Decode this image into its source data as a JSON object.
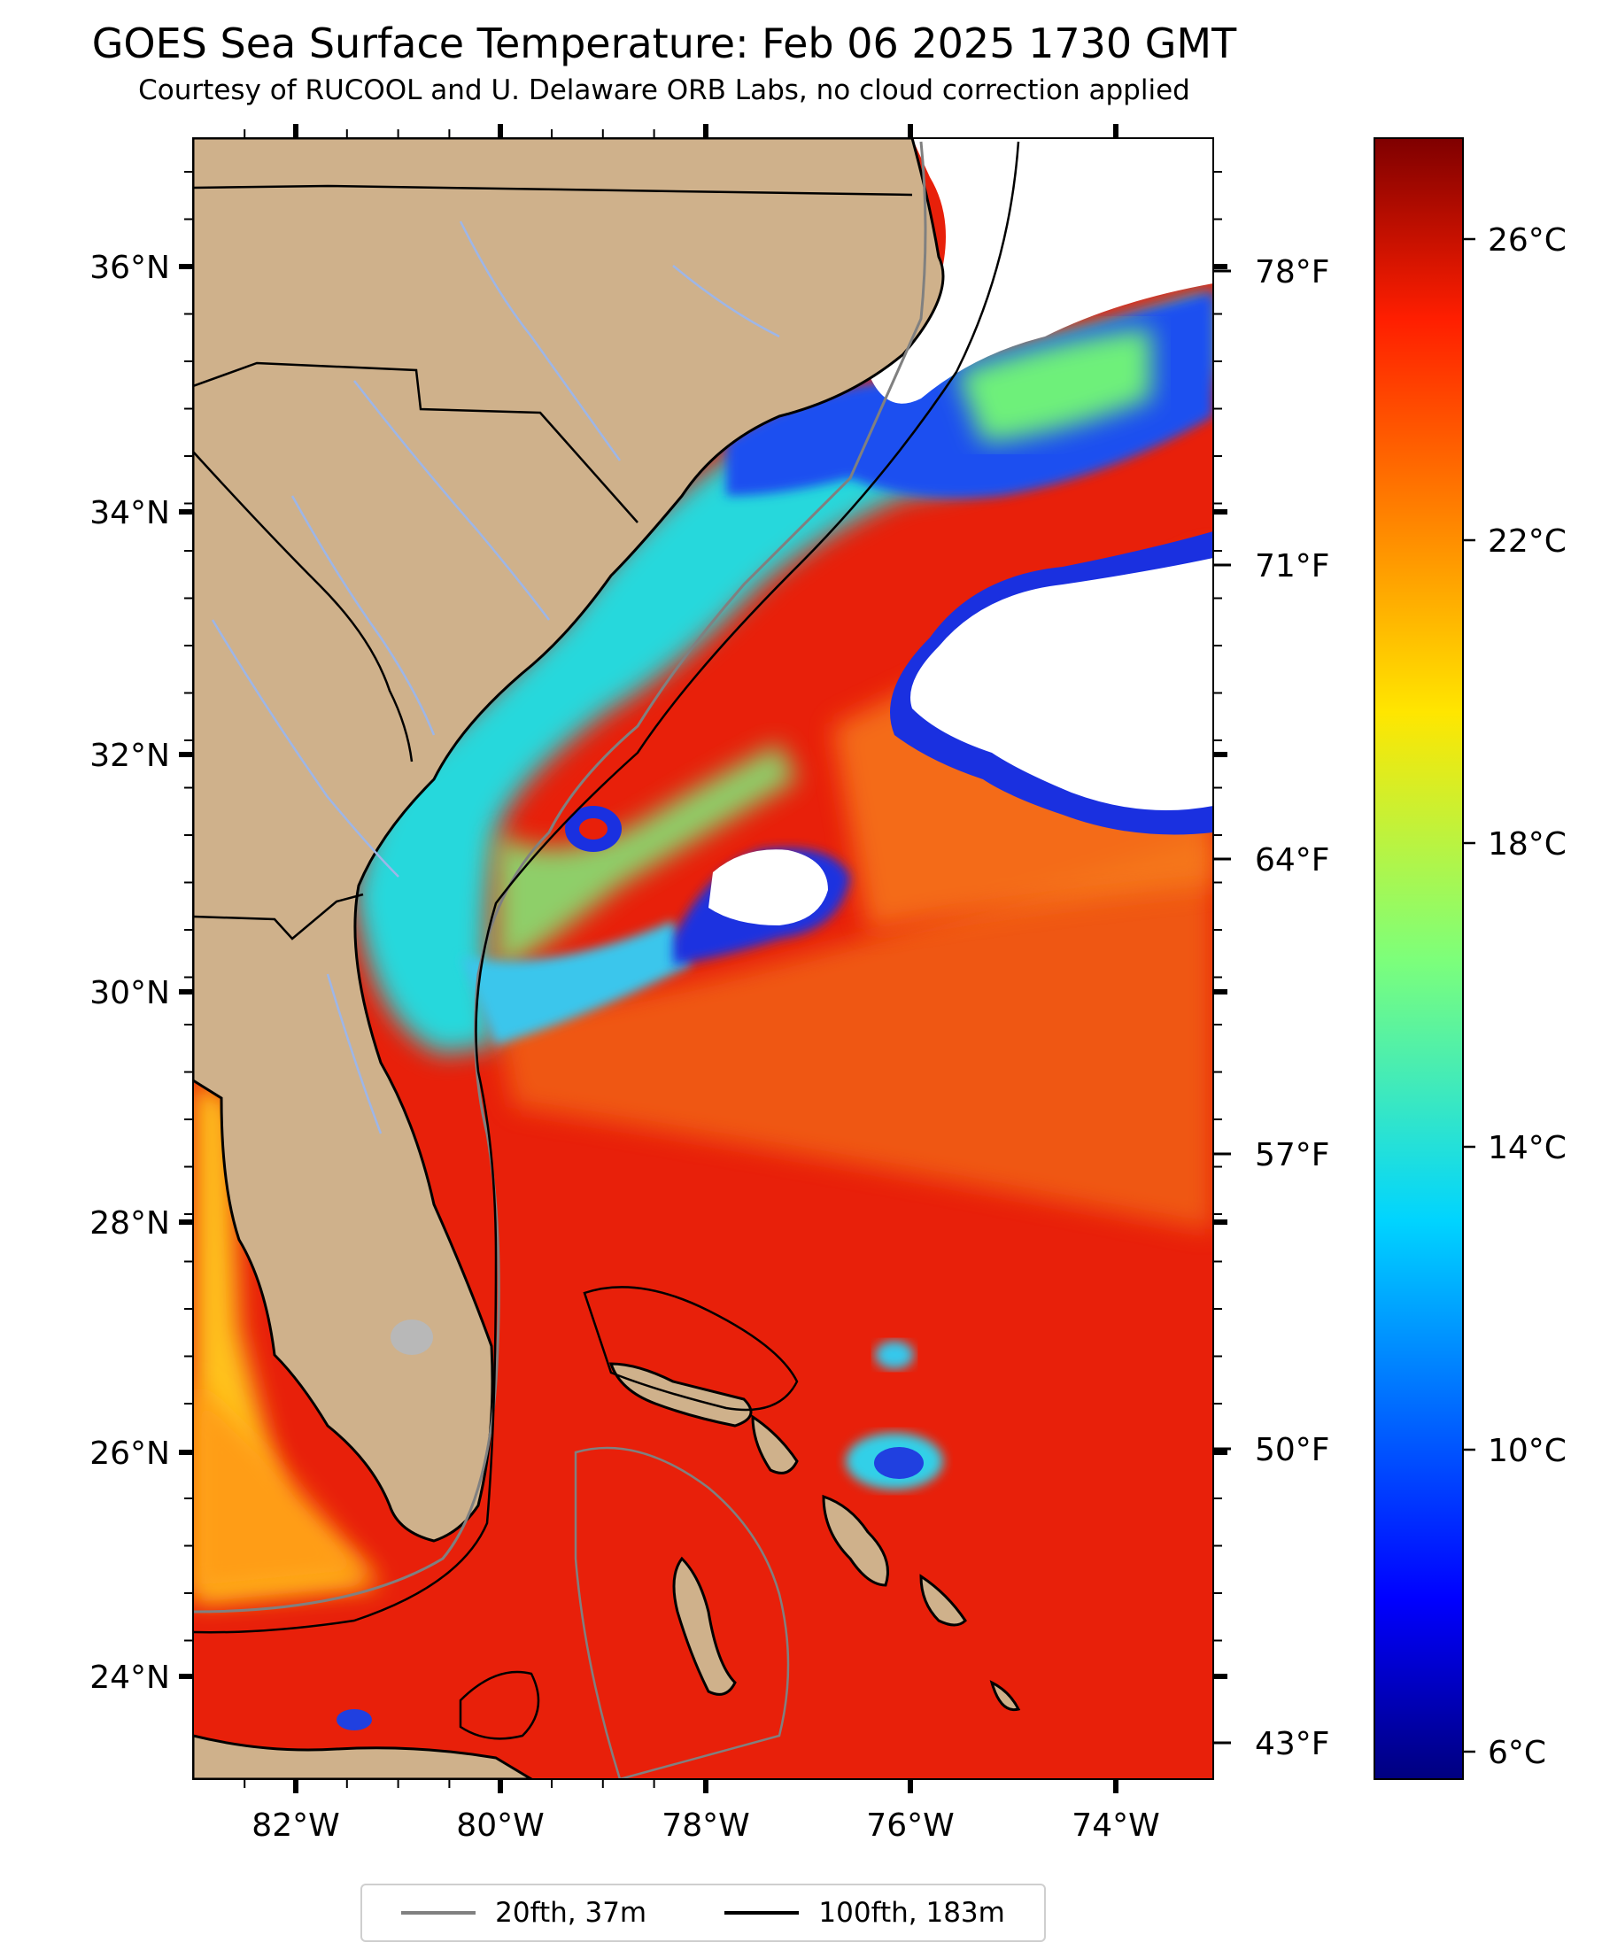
{
  "title": "GOES Sea Surface Temperature: Feb 06 2025 1730 GMT",
  "subtitle": "Courtesy of RUCOOL and U. Delaware ORB Labs, no cloud correction applied",
  "axes": {
    "lon_ticks": [
      "82°W",
      "80°W",
      "78°W",
      "76°W",
      "74°W"
    ],
    "lat_ticks": [
      "36°N",
      "34°N",
      "32°N",
      "30°N",
      "28°N",
      "26°N",
      "24°N"
    ],
    "f_ticks": [
      "78°F",
      "71°F",
      "64°F",
      "57°F",
      "50°F",
      "43°F"
    ]
  },
  "colorbar": {
    "ticks": [
      "26°C",
      "22°C",
      "18°C",
      "14°C",
      "10°C",
      "6°C"
    ]
  },
  "legend": {
    "items": [
      {
        "label": "20fth, 37m",
        "color": "#808080"
      },
      {
        "label": "100fth, 183m",
        "color": "#000000"
      }
    ]
  },
  "colors": {
    "land": "#cfb18b",
    "warm_ocean": "#e8200a",
    "river": "#9db6e8"
  }
}
